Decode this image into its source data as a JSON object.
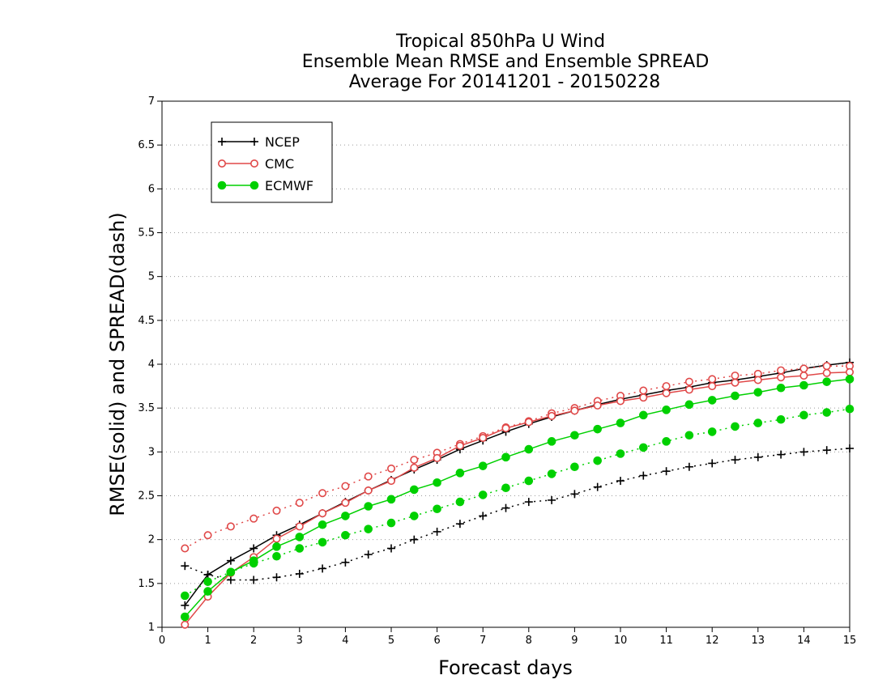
{
  "chart_data": {
    "type": "line",
    "title": [
      "Tropical 850hPa U Wind",
      "Ensemble Mean RMSE and Ensemble SPREAD",
      "Average For 20141201 - 20150228"
    ],
    "xlabel": "Forecast days",
    "ylabel": "RMSE(solid) and SPREAD(dash)",
    "xlim": [
      0,
      15
    ],
    "ylim": [
      1,
      7
    ],
    "xticks": [
      "0",
      "1",
      "2",
      "3",
      "4",
      "5",
      "6",
      "7",
      "8",
      "9",
      "10",
      "11",
      "12",
      "13",
      "14",
      "15"
    ],
    "yticks": [
      "1",
      "1.5",
      "2",
      "2.5",
      "3",
      "3.5",
      "4",
      "4.5",
      "5",
      "5.5",
      "6",
      "6.5",
      "7"
    ],
    "grid": "horizontal dotted",
    "legend_position": "top-left",
    "x": [
      0.5,
      1,
      1.5,
      2,
      2.5,
      3,
      3.5,
      4,
      4.5,
      5,
      5.5,
      6,
      6.5,
      7,
      7.5,
      8,
      8.5,
      9,
      9.5,
      10,
      10.5,
      11,
      11.5,
      12,
      12.5,
      13,
      13.5,
      14,
      14.5,
      15
    ],
    "series": [
      {
        "name": "NCEP",
        "color": "#000000",
        "marker": "plus",
        "rmse": [
          1.25,
          1.6,
          1.76,
          1.9,
          2.05,
          2.17,
          2.3,
          2.43,
          2.56,
          2.68,
          2.8,
          2.91,
          3.03,
          3.13,
          3.23,
          3.32,
          3.4,
          3.47,
          3.54,
          3.6,
          3.65,
          3.7,
          3.74,
          3.79,
          3.82,
          3.86,
          3.9,
          3.95,
          3.99,
          4.02
        ],
        "spread": [
          1.7,
          1.6,
          1.54,
          1.54,
          1.57,
          1.61,
          1.67,
          1.74,
          1.83,
          1.9,
          2.0,
          2.09,
          2.18,
          2.27,
          2.36,
          2.43,
          2.45,
          2.52,
          2.6,
          2.67,
          2.73,
          2.78,
          2.83,
          2.87,
          2.91,
          2.94,
          2.97,
          3.0,
          3.02,
          3.04
        ]
      },
      {
        "name": "CMC",
        "color": "#e04848",
        "marker": "open-circle",
        "rmse": [
          1.03,
          1.35,
          1.62,
          1.8,
          2.01,
          2.15,
          2.3,
          2.42,
          2.56,
          2.67,
          2.82,
          2.93,
          3.07,
          3.16,
          3.27,
          3.34,
          3.41,
          3.47,
          3.53,
          3.58,
          3.62,
          3.67,
          3.71,
          3.75,
          3.79,
          3.82,
          3.85,
          3.87,
          3.9,
          3.91
        ],
        "spread": [
          1.9,
          2.05,
          2.15,
          2.24,
          2.33,
          2.42,
          2.53,
          2.61,
          2.72,
          2.81,
          2.91,
          2.99,
          3.09,
          3.18,
          3.28,
          3.35,
          3.44,
          3.5,
          3.58,
          3.64,
          3.7,
          3.75,
          3.8,
          3.83,
          3.87,
          3.89,
          3.93,
          3.95,
          3.98,
          3.98
        ]
      },
      {
        "name": "ECMWF",
        "color": "#00d000",
        "marker": "filled-circle",
        "rmse": [
          1.12,
          1.41,
          1.63,
          1.76,
          1.92,
          2.03,
          2.17,
          2.27,
          2.38,
          2.46,
          2.57,
          2.65,
          2.76,
          2.84,
          2.94,
          3.03,
          3.12,
          3.19,
          3.26,
          3.33,
          3.42,
          3.48,
          3.54,
          3.59,
          3.64,
          3.68,
          3.73,
          3.76,
          3.8,
          3.83
        ],
        "spread": [
          1.36,
          1.52,
          1.63,
          1.73,
          1.81,
          1.9,
          1.97,
          2.05,
          2.12,
          2.19,
          2.27,
          2.35,
          2.43,
          2.51,
          2.59,
          2.67,
          2.75,
          2.83,
          2.9,
          2.98,
          3.05,
          3.12,
          3.19,
          3.23,
          3.29,
          3.33,
          3.37,
          3.42,
          3.45,
          3.49
        ]
      }
    ]
  }
}
